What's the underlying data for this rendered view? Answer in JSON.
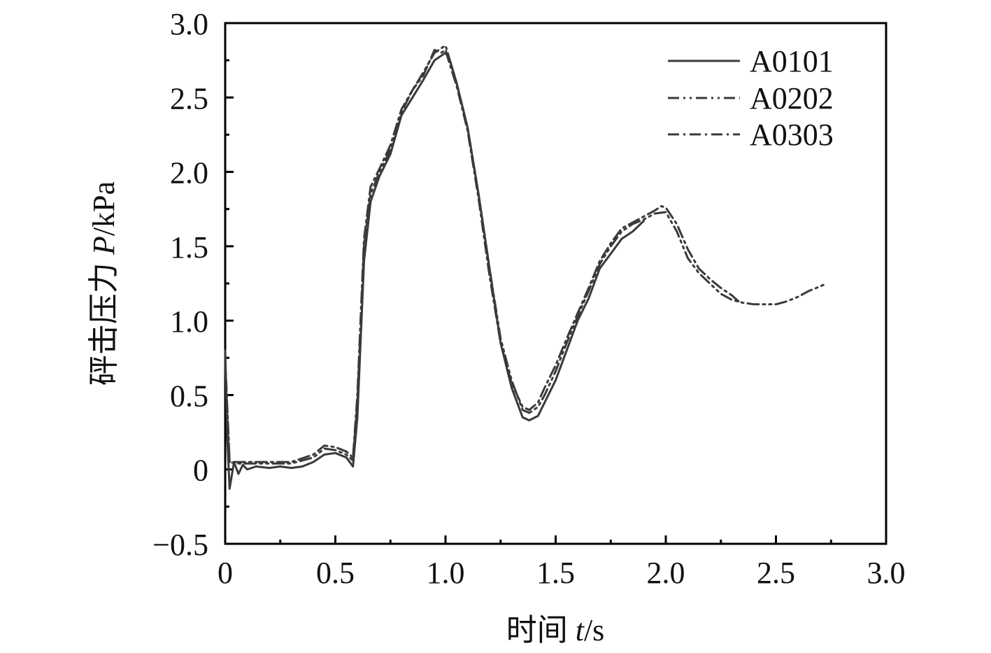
{
  "chart_data": {
    "type": "line",
    "xlabel": {
      "prefix": "时间 ",
      "var": "t",
      "unit": "/s"
    },
    "ylabel": {
      "prefix": "砰击压力 ",
      "var": "P",
      "unit": "/kPa"
    },
    "xlim": [
      0,
      3.0
    ],
    "ylim": [
      -0.5,
      3.0
    ],
    "x_ticks": [
      0,
      0.5,
      1.0,
      1.5,
      2.0,
      2.5,
      3.0
    ],
    "x_tick_labels": [
      "0",
      "0.5",
      "1.0",
      "1.5",
      "2.0",
      "2.5",
      "3.0"
    ],
    "y_ticks": [
      -0.5,
      0,
      0.5,
      1.0,
      1.5,
      2.0,
      2.5,
      3.0
    ],
    "y_tick_labels": [
      "−0.5",
      "0",
      "0.5",
      "1.0",
      "1.5",
      "2.0",
      "2.5",
      "3.0"
    ],
    "grid": false,
    "legend_position": "top-right",
    "series": [
      {
        "name": "A0101",
        "style": "solid",
        "color": "#3a3a3a",
        "x": [
          0,
          0.01,
          0.02,
          0.04,
          0.06,
          0.08,
          0.1,
          0.14,
          0.2,
          0.25,
          0.3,
          0.35,
          0.4,
          0.45,
          0.5,
          0.55,
          0.58,
          0.6,
          0.63,
          0.66,
          0.7,
          0.75,
          0.8,
          0.85,
          0.9,
          0.95,
          1.0,
          1.02,
          1.05,
          1.1,
          1.15,
          1.2,
          1.25,
          1.3,
          1.35,
          1.38,
          1.42,
          1.45,
          1.5,
          1.55,
          1.6,
          1.65,
          1.7,
          1.75,
          1.8,
          1.85,
          1.9
        ],
        "y": [
          0.8,
          0.2,
          -0.13,
          0.05,
          -0.03,
          0.03,
          0.0,
          0.02,
          0.01,
          0.02,
          0.01,
          0.02,
          0.05,
          0.1,
          0.11,
          0.08,
          0.02,
          0.35,
          1.4,
          1.8,
          1.97,
          2.12,
          2.38,
          2.5,
          2.62,
          2.75,
          2.8,
          2.75,
          2.6,
          2.3,
          1.85,
          1.35,
          0.85,
          0.55,
          0.35,
          0.33,
          0.36,
          0.45,
          0.6,
          0.8,
          1.0,
          1.15,
          1.35,
          1.45,
          1.55,
          1.6,
          1.67
        ]
      },
      {
        "name": "A0202",
        "style": "dash-dot-dot",
        "color": "#3a3a3a",
        "x": [
          0,
          0.02,
          0.05,
          0.1,
          0.2,
          0.3,
          0.4,
          0.45,
          0.5,
          0.55,
          0.58,
          0.6,
          0.63,
          0.66,
          0.7,
          0.75,
          0.8,
          0.85,
          0.9,
          0.95,
          1.0,
          1.02,
          1.05,
          1.1,
          1.15,
          1.2,
          1.25,
          1.3,
          1.35,
          1.38,
          1.42,
          1.45,
          1.5,
          1.55,
          1.6,
          1.65,
          1.7,
          1.75,
          1.8,
          1.85,
          1.9,
          1.95,
          2.0,
          2.05,
          2.1,
          2.15,
          2.2,
          2.25,
          2.3,
          2.35,
          2.4,
          2.45,
          2.5,
          2.55,
          2.6,
          2.65,
          2.7,
          2.73
        ],
        "y": [
          0.7,
          0.05,
          0.04,
          0.04,
          0.04,
          0.04,
          0.08,
          0.14,
          0.13,
          0.1,
          0.06,
          0.45,
          1.5,
          1.85,
          2.0,
          2.15,
          2.4,
          2.55,
          2.67,
          2.8,
          2.85,
          2.75,
          2.6,
          2.3,
          1.85,
          1.35,
          0.88,
          0.6,
          0.4,
          0.38,
          0.42,
          0.5,
          0.66,
          0.85,
          1.03,
          1.2,
          1.38,
          1.5,
          1.6,
          1.65,
          1.68,
          1.72,
          1.73,
          1.6,
          1.42,
          1.32,
          1.25,
          1.18,
          1.14,
          1.12,
          1.11,
          1.11,
          1.11,
          1.13,
          1.16,
          1.2,
          1.23,
          1.25
        ]
      },
      {
        "name": "A0303",
        "style": "dash-dot",
        "color": "#3a3a3a",
        "x": [
          0,
          0.02,
          0.05,
          0.1,
          0.2,
          0.3,
          0.4,
          0.45,
          0.5,
          0.55,
          0.58,
          0.6,
          0.63,
          0.66,
          0.7,
          0.75,
          0.8,
          0.85,
          0.9,
          0.95,
          0.98,
          1.0,
          1.02,
          1.05,
          1.1,
          1.15,
          1.2,
          1.25,
          1.3,
          1.35,
          1.38,
          1.42,
          1.45,
          1.5,
          1.55,
          1.6,
          1.65,
          1.7,
          1.75,
          1.8,
          1.85,
          1.9,
          1.95,
          1.98,
          2.0,
          2.05,
          2.1,
          2.15,
          2.2,
          2.25,
          2.3,
          2.33
        ],
        "y": [
          0.75,
          0.05,
          0.05,
          0.05,
          0.05,
          0.05,
          0.1,
          0.16,
          0.15,
          0.12,
          0.08,
          0.5,
          1.55,
          1.9,
          2.02,
          2.18,
          2.42,
          2.55,
          2.65,
          2.82,
          2.8,
          2.82,
          2.72,
          2.58,
          2.28,
          1.82,
          1.3,
          0.85,
          0.58,
          0.42,
          0.4,
          0.45,
          0.55,
          0.7,
          0.88,
          1.05,
          1.22,
          1.4,
          1.52,
          1.62,
          1.66,
          1.7,
          1.74,
          1.77,
          1.76,
          1.65,
          1.48,
          1.35,
          1.28,
          1.22,
          1.17,
          1.13
        ]
      }
    ]
  }
}
